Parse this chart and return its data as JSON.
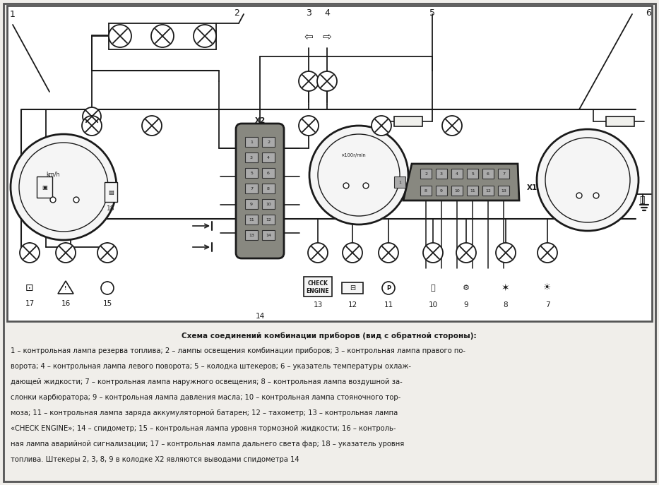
{
  "bg_color": "#f0eeea",
  "diagram_bg": "#f5f4f0",
  "line_color": "#1a1a1a",
  "text_color": "#1a1a1a",
  "fig_width": 9.33,
  "fig_height": 6.87,
  "dpi": 100,
  "description_bold": "Схема соединений комбинации приборов (вид с обратной стороны):",
  "desc_lines": [
    "1 – контрольная лампа резерва топлива; 2 – лампы освещения комбинации приборов; 3 – контрольная лампа правого по-",
    "ворота; 4 – контрольная лампа левого поворота; 5 – колодка штекеров; 6 – указатель температуры охлаж-",
    "дающей жидкости; 7 – контрольная лампа наружного освещения; 8 – контрольная лампа воздушной за-",
    "слонки карбюратора; 9 – контрольная лампа давления масла; 10 – контрольная лампа стояночного тор-",
    "моза; 11 – контрольная лампа заряда аккумуляторной батарен; 12 – тахометр; 13 – контрольная лампа",
    "«CHECK ENGINE»; 14 – спидометр; 15 – контрольная лампа уровня тормозной жидкости; 16 – контроль-",
    "ная лампа аварийной сигнализации; 17 – контрольная лампа дальнего света фар; 18 – указатель уровня",
    "топлива. Штекеры 2, 3, 8, 9 в колодке Х2 являются выводами спидометра 14"
  ]
}
